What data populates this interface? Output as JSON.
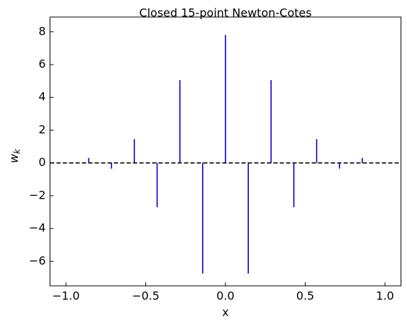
{
  "chart_data": {
    "type": "stem",
    "title": "Closed 15-point Newton-Cotes",
    "xlabel": "x",
    "ylabel": {
      "base": "w",
      "sub": "k"
    },
    "x": [
      -1,
      -0.8571,
      -0.7143,
      -0.5714,
      -0.4286,
      -0.2857,
      -0.1429,
      0,
      0.1429,
      0.2857,
      0.4286,
      0.5714,
      0.7143,
      0.8571,
      1
    ],
    "values": [
      0.03,
      0.3,
      -0.35,
      1.45,
      -2.7,
      5.05,
      -6.75,
      7.8,
      -6.75,
      5.05,
      -2.7,
      1.45,
      -0.35,
      0.3,
      0.03
    ],
    "color": "#0000cc",
    "baseline": 0,
    "baseline_color": "#000000",
    "xlim": [
      -1.1,
      1.1
    ],
    "ylim": [
      -7.5,
      8.9
    ],
    "xticks": [
      {
        "value": -1,
        "label": "−1.0"
      },
      {
        "value": -0.5,
        "label": "−0.5"
      },
      {
        "value": 0,
        "label": "0.0"
      },
      0.5,
      {
        "value": 1,
        "label": "1.0"
      }
    ],
    "yticks": [
      {
        "value": -6,
        "label": "−6"
      },
      {
        "value": -4,
        "label": "−4"
      },
      {
        "value": -2,
        "label": "−2"
      },
      0,
      2,
      4,
      6,
      8
    ],
    "grid": false
  }
}
